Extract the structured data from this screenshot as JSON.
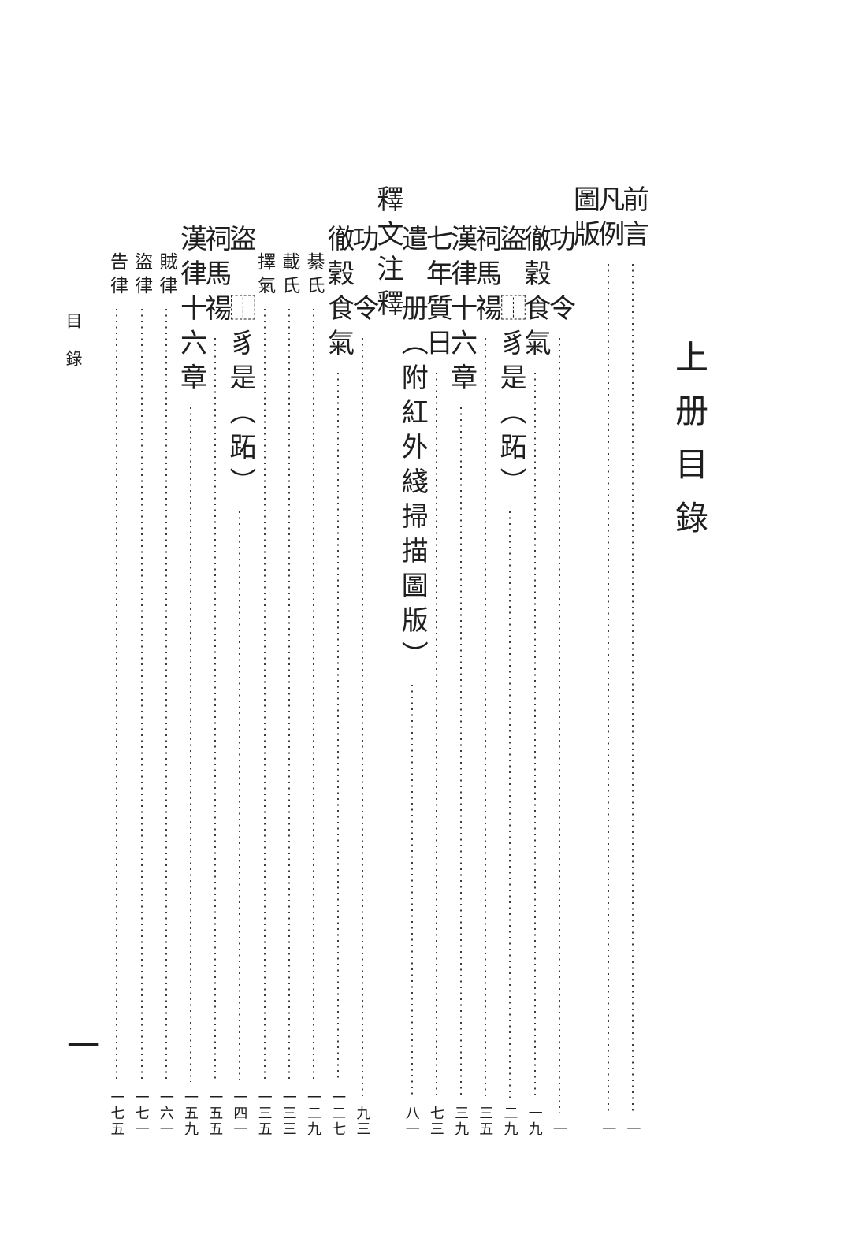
{
  "page": {
    "running_head": "目錄",
    "folio_number": "一"
  },
  "book_title": "上册目錄",
  "toc": {
    "entries": [
      {
        "type": "entry",
        "level": 0,
        "title": "前言",
        "page": "一"
      },
      {
        "type": "entry",
        "level": 0,
        "title": "凡例",
        "page": "一"
      },
      {
        "type": "header",
        "level": 0,
        "title": "圖版",
        "page": ""
      },
      {
        "type": "entry",
        "level": 1,
        "title": "功　令",
        "page": "一"
      },
      {
        "type": "entry",
        "level": 1,
        "title": "徹穀食氣",
        "page": "一九"
      },
      {
        "type": "entry",
        "level": 1,
        "title": "盜　⿰豸是（跖）",
        "page": "二九"
      },
      {
        "type": "entry",
        "level": 1,
        "title": "祠馬禓",
        "page": "三五"
      },
      {
        "type": "entry",
        "level": 1,
        "title": "漢律十六章",
        "page": "三九"
      },
      {
        "type": "entry",
        "level": 1,
        "title": "七年質日",
        "page": "七三"
      },
      {
        "type": "entry",
        "level": 1,
        "title": "遣　册（附紅外綫掃描圖版）",
        "page": "八一"
      },
      {
        "type": "header",
        "level": 0,
        "title": "釋文注釋",
        "page": ""
      },
      {
        "type": "entry",
        "level": 1,
        "title": "功　令",
        "page": "九三"
      },
      {
        "type": "entry",
        "level": 1,
        "title": "徹穀食氣",
        "page": "一二七"
      },
      {
        "type": "entry",
        "level": 2,
        "title": "綦氏",
        "page": "一二九"
      },
      {
        "type": "entry",
        "level": 2,
        "title": "載氏",
        "page": "一三三"
      },
      {
        "type": "entry",
        "level": 2,
        "title": "擇氣",
        "page": "一三五"
      },
      {
        "type": "entry",
        "level": 1,
        "title": "盜　⿰豸是（跖）",
        "page": "一四一"
      },
      {
        "type": "entry",
        "level": 1,
        "title": "祠馬禓",
        "page": "一五五"
      },
      {
        "type": "entry",
        "level": 1,
        "title": "漢律十六章",
        "page": "一五九"
      },
      {
        "type": "entry",
        "level": 2,
        "title": "賊律",
        "page": "一六一"
      },
      {
        "type": "entry",
        "level": 2,
        "title": "盜律",
        "page": "一七一"
      },
      {
        "type": "entry",
        "level": 2,
        "title": "告律",
        "page": "一七五"
      }
    ]
  }
}
